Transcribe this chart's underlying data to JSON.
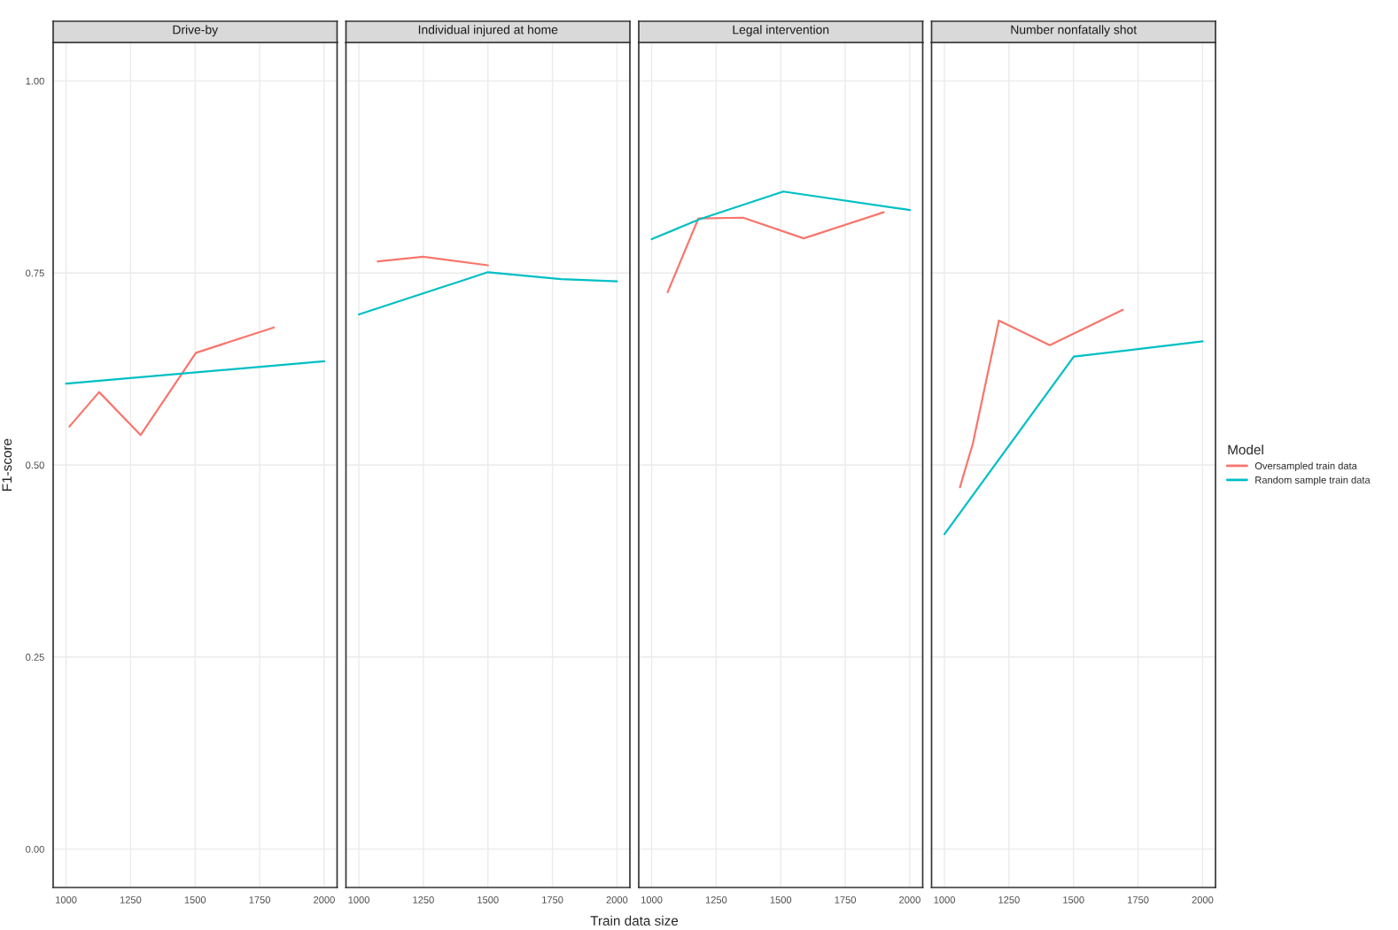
{
  "chart_data": [
    {
      "type": "line",
      "title": "Drive-by",
      "ylabel": "F1-score",
      "xlim": [
        950,
        2050
      ],
      "xticks": [
        1000,
        1250,
        1500,
        1750,
        2000
      ],
      "ylim": [
        -0.05,
        1.05
      ],
      "yticks": [
        {
          "value": 0,
          "label": "0.00"
        },
        {
          "value": 0.25,
          "label": "0.25"
        },
        {
          "value": 0.5,
          "label": "0.50"
        },
        {
          "value": 0.75,
          "label": "0.75"
        },
        {
          "value": 1,
          "label": "1.00"
        }
      ],
      "grid": true,
      "series": [
        {
          "color": "#f8766d",
          "x": [
            1013,
            1128,
            1289,
            1503,
            1805
          ],
          "values": [
            0.55,
            0.595,
            0.539,
            0.646,
            0.679
          ]
        },
        {
          "color": "#00bfc4",
          "x": [
            1000,
            2000
          ],
          "values": [
            0.606,
            0.635
          ]
        }
      ]
    },
    {
      "type": "line",
      "title": "Individual injured at home",
      "xlim": [
        950,
        2050
      ],
      "xticks": [
        1000,
        1250,
        1500,
        1750,
        2000
      ],
      "ylim": [
        -0.05,
        1.05
      ],
      "yticks": [
        {
          "value": 0,
          "label": null
        },
        {
          "value": 0.25,
          "label": null
        },
        {
          "value": 0.5,
          "label": null
        },
        {
          "value": 0.75,
          "label": null
        },
        {
          "value": 1,
          "label": null
        }
      ],
      "tick_labels": "x",
      "grid": true,
      "series": [
        {
          "color": "#f8766d",
          "x": [
            1073,
            1249,
            1500
          ],
          "values": [
            0.765,
            0.771,
            0.76
          ]
        },
        {
          "color": "#00bfc4",
          "x": [
            1000,
            1500,
            1783,
            2000
          ],
          "values": [
            0.696,
            0.751,
            0.742,
            0.739
          ]
        }
      ]
    },
    {
      "type": "line",
      "title": "Legal intervention",
      "xlabel": "Train data size",
      "xlim": [
        950,
        2050
      ],
      "xticks": [
        1000,
        1250,
        1500,
        1750,
        2000
      ],
      "ylim": [
        -0.05,
        1.05
      ],
      "yticks": [
        {
          "value": 0,
          "label": null
        },
        {
          "value": 0.25,
          "label": null
        },
        {
          "value": 0.5,
          "label": null
        },
        {
          "value": 0.75,
          "label": null
        },
        {
          "value": 1,
          "label": null
        }
      ],
      "tick_labels": "x",
      "grid": true,
      "series": [
        {
          "color": "#f8766d",
          "x": [
            1062,
            1181,
            1354,
            1589,
            1899
          ],
          "values": [
            0.725,
            0.821,
            0.822,
            0.795,
            0.829
          ]
        },
        {
          "color": "#00bfc4",
          "x": [
            1000,
            1186,
            1510,
            2000
          ],
          "values": [
            0.794,
            0.82,
            0.856,
            0.832
          ]
        }
      ]
    },
    {
      "type": "line",
      "title": "Number nonfatally shot",
      "legend_title": "Model",
      "xlim": [
        950,
        2050
      ],
      "xticks": [
        1000,
        1250,
        1500,
        1750,
        2000
      ],
      "ylim": [
        -0.05,
        1.05
      ],
      "yticks": [
        {
          "value": 0,
          "label": null
        },
        {
          "value": 0.25,
          "label": null
        },
        {
          "value": 0.5,
          "label": null
        },
        {
          "value": 0.75,
          "label": null
        },
        {
          "value": 1,
          "label": null
        }
      ],
      "tick_labels": "x",
      "grid": true,
      "legend": "right",
      "series": [
        {
          "name": "Oversampled train data",
          "color": "#f8766d",
          "x": [
            1060,
            1110,
            1211,
            1408,
            1691
          ],
          "values": [
            0.471,
            0.528,
            0.688,
            0.656,
            0.702
          ]
        },
        {
          "name": "Random sample train data",
          "color": "#00bfc4",
          "x": [
            1000,
            1501,
            2000
          ],
          "values": [
            0.41,
            0.641,
            0.661
          ]
        }
      ]
    }
  ]
}
